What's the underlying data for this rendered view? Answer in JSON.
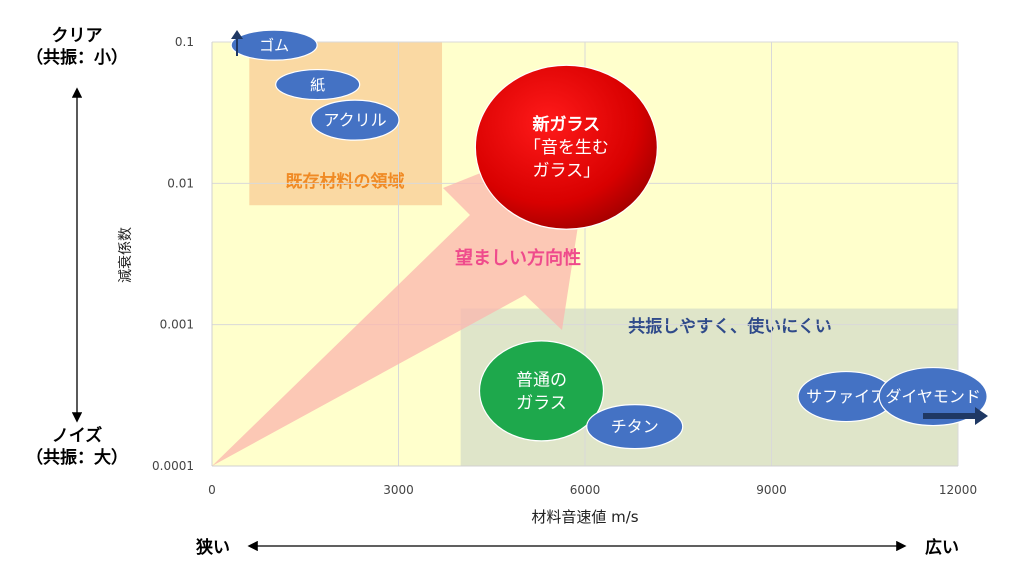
{
  "chart_data": {
    "type": "scatter",
    "xlabel": "材料音速値 m/s",
    "ylabel": "減衰係数",
    "x_ticks": [
      "0",
      "3000",
      "6000",
      "9000",
      "12000"
    ],
    "y_ticks": [
      "0.0001",
      "0.001",
      "0.01",
      "0.1"
    ],
    "xlim": [
      0,
      12000
    ],
    "ylim": [
      0.0001,
      0.1
    ],
    "y_scale": "log",
    "grid": true,
    "points": [
      {
        "label": "ゴム",
        "x": 1000,
        "y": 0.095
      },
      {
        "label": "紙",
        "x": 1700,
        "y": 0.05
      },
      {
        "label": "アクリル",
        "x": 2300,
        "y": 0.028
      },
      {
        "label": "新ガラス\n「音を生む\nガラス」",
        "x": 5700,
        "y": 0.018
      },
      {
        "label": "普通の\nガラス",
        "x": 5300,
        "y": 0.00034
      },
      {
        "label": "チタン",
        "x": 6800,
        "y": 0.00019
      },
      {
        "label": "サファイア",
        "x": 10200,
        "y": 0.00031
      },
      {
        "label": "ダイヤモンド",
        "x": 11600,
        "y": 0.00031
      }
    ],
    "regions": [
      {
        "label": "既存材料の領域",
        "x": [
          600,
          3700
        ],
        "y": [
          0.007,
          0.1
        ]
      },
      {
        "label": "共振しやすく、使いにくい",
        "x": [
          4000,
          12000
        ],
        "y": [
          0.0001,
          0.0013
        ]
      }
    ],
    "annotations": [
      "望ましい方向性"
    ]
  },
  "side_labels": {
    "top_left": "クリア\n（共振：小）",
    "bottom_left": "ノイズ\n（共振：大）",
    "bottom_axis_left": "狭い",
    "bottom_axis_right": "広い"
  },
  "colors": {
    "plot_bg": "#ffffcc",
    "existing_region": "#fad7a0",
    "resonance_region": "#dfe5c9",
    "ellipse_blue": "#4472c4",
    "ellipse_green": "#1ea84c",
    "ellipse_red": "#e00000",
    "arrow_pink": "#fbb6ae",
    "orange_text": "#f08a24",
    "pink_text": "#ef4b8c",
    "navy_text": "#2f4a8a"
  }
}
